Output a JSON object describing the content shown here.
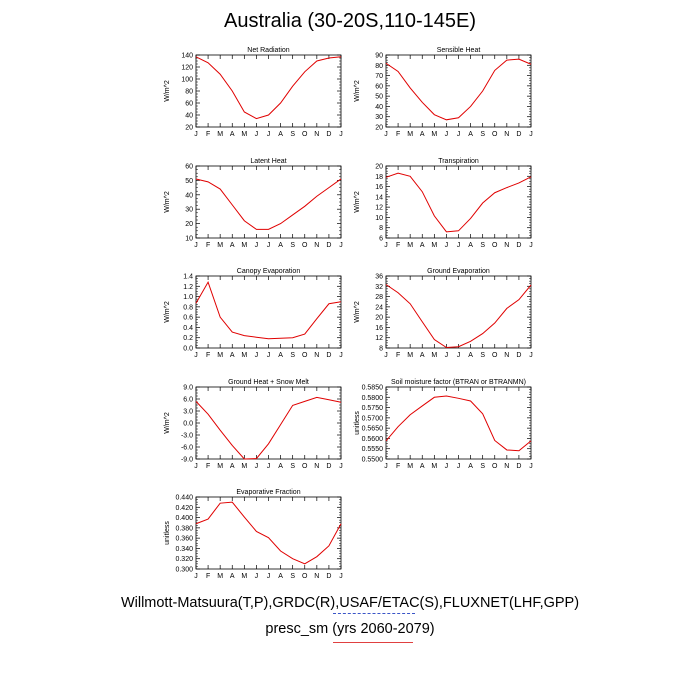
{
  "title": "Australia (30-20S,110-145E)",
  "footer": {
    "source": "Willmott-Matsuura(T,P),GRDC(R),USAF/ETAC(S),FLUXNET(LHF,GPP)",
    "period": "presc_sm (yrs 2060-2079)"
  },
  "colors": {
    "line": "#e00000",
    "obs_dash": "#3a55c8",
    "model_underline": "#e04040"
  },
  "chart_data": [
    {
      "type": "line",
      "title": "Net Radiation",
      "xlabel": "",
      "ylabel": "W/m^2",
      "categories": [
        "J",
        "F",
        "M",
        "A",
        "M",
        "J",
        "J",
        "A",
        "S",
        "O",
        "N",
        "D",
        "J"
      ],
      "ylim": [
        20,
        140
      ],
      "yticks": [
        "20",
        "40",
        "60",
        "80",
        "100",
        "120",
        "140"
      ],
      "values": [
        137,
        127,
        108,
        80,
        45,
        34,
        40,
        60,
        88,
        112,
        130,
        135,
        137
      ]
    },
    {
      "type": "line",
      "title": "Sensible Heat",
      "xlabel": "",
      "ylabel": "W/m^2",
      "categories": [
        "J",
        "F",
        "M",
        "A",
        "M",
        "J",
        "J",
        "A",
        "S",
        "O",
        "N",
        "D",
        "J"
      ],
      "ylim": [
        20,
        90
      ],
      "yticks": [
        "20",
        "30",
        "40",
        "50",
        "60",
        "70",
        "80",
        "90"
      ],
      "values": [
        82,
        74,
        58,
        44,
        32,
        27,
        29,
        40,
        55,
        75,
        85,
        86,
        81
      ]
    },
    {
      "type": "line",
      "title": "Latent Heat",
      "xlabel": "",
      "ylabel": "W/m^2",
      "categories": [
        "J",
        "F",
        "M",
        "A",
        "M",
        "J",
        "J",
        "A",
        "S",
        "O",
        "N",
        "D",
        "J"
      ],
      "ylim": [
        10,
        60
      ],
      "yticks": [
        "10",
        "20",
        "30",
        "40",
        "50",
        "60"
      ],
      "values": [
        51,
        49,
        44,
        33,
        22,
        16,
        16,
        20,
        26,
        32,
        39,
        45,
        51
      ]
    },
    {
      "type": "line",
      "title": "Transpiration",
      "xlabel": "",
      "ylabel": "W/m^2",
      "categories": [
        "J",
        "F",
        "M",
        "A",
        "M",
        "J",
        "J",
        "A",
        "S",
        "O",
        "N",
        "D",
        "J"
      ],
      "ylim": [
        6,
        20
      ],
      "yticks": [
        "6",
        "8",
        "10",
        "12",
        "14",
        "16",
        "18",
        "20"
      ],
      "values": [
        17.8,
        18.6,
        18.0,
        15.0,
        10.3,
        7.2,
        7.4,
        9.8,
        12.8,
        14.8,
        15.8,
        16.7,
        17.9
      ]
    },
    {
      "type": "line",
      "title": "Canopy Evaporation",
      "xlabel": "",
      "ylabel": "W/m^2",
      "categories": [
        "J",
        "F",
        "M",
        "A",
        "M",
        "J",
        "J",
        "A",
        "S",
        "O",
        "N",
        "D",
        "J"
      ],
      "ylim": [
        0.0,
        1.4
      ],
      "yticks": [
        "0.0",
        "0.2",
        "0.4",
        "0.6",
        "0.8",
        "1.0",
        "1.2",
        "1.4"
      ],
      "values": [
        0.87,
        1.28,
        0.6,
        0.31,
        0.24,
        0.21,
        0.18,
        0.19,
        0.2,
        0.27,
        0.57,
        0.86,
        0.9
      ]
    },
    {
      "type": "line",
      "title": "Ground Evaporation",
      "xlabel": "",
      "ylabel": "W/m^2",
      "categories": [
        "J",
        "F",
        "M",
        "A",
        "M",
        "J",
        "J",
        "A",
        "S",
        "O",
        "N",
        "D",
        "J"
      ],
      "ylim": [
        8,
        36
      ],
      "yticks": [
        "8",
        "12",
        "16",
        "20",
        "24",
        "28",
        "32",
        "36"
      ],
      "values": [
        32.7,
        29.5,
        25.2,
        18.2,
        11.3,
        8.2,
        8.5,
        10.6,
        13.6,
        17.7,
        23.4,
        26.8,
        32.5
      ]
    },
    {
      "type": "line",
      "title": "Ground Heat + Snow Melt",
      "xlabel": "",
      "ylabel": "W/m^2",
      "categories": [
        "J",
        "F",
        "M",
        "A",
        "M",
        "J",
        "J",
        "A",
        "S",
        "O",
        "N",
        "D",
        "J"
      ],
      "ylim": [
        -9.0,
        9.0
      ],
      "yticks": [
        "-9.0",
        "-6.0",
        "-3.0",
        "0.0",
        "3.0",
        "6.0",
        "9.0"
      ],
      "values": [
        5.4,
        2.2,
        -1.8,
        -5.6,
        -9.0,
        -8.9,
        -5.2,
        -0.4,
        4.4,
        5.4,
        6.4,
        5.8,
        5.2
      ]
    },
    {
      "type": "line",
      "title": "Soil moisture factor (BTRAN or BTRANMN)",
      "xlabel": "",
      "ylabel": "unitless",
      "categories": [
        "J",
        "F",
        "M",
        "A",
        "M",
        "J",
        "J",
        "A",
        "S",
        "O",
        "N",
        "D",
        "J"
      ],
      "ylim": [
        0.55,
        0.585
      ],
      "yticks": [
        "0.5500",
        "0.5550",
        "0.5600",
        "0.5650",
        "0.5700",
        "0.5750",
        "0.5800",
        "0.5850"
      ],
      "values": [
        0.5588,
        0.5657,
        0.5715,
        0.5758,
        0.58,
        0.5806,
        0.5795,
        0.5782,
        0.572,
        0.559,
        0.5544,
        0.554,
        0.5588
      ]
    },
    {
      "type": "line",
      "title": "Evaporative Fraction",
      "xlabel": "",
      "ylabel": "unitless",
      "categories": [
        "J",
        "F",
        "M",
        "A",
        "M",
        "J",
        "J",
        "A",
        "S",
        "O",
        "N",
        "D",
        "J"
      ],
      "ylim": [
        0.3,
        0.44
      ],
      "yticks": [
        "0.300",
        "0.320",
        "0.340",
        "0.360",
        "0.380",
        "0.400",
        "0.420",
        "0.440"
      ],
      "values": [
        0.388,
        0.397,
        0.428,
        0.43,
        0.401,
        0.373,
        0.361,
        0.335,
        0.32,
        0.31,
        0.324,
        0.345,
        0.388
      ]
    }
  ]
}
